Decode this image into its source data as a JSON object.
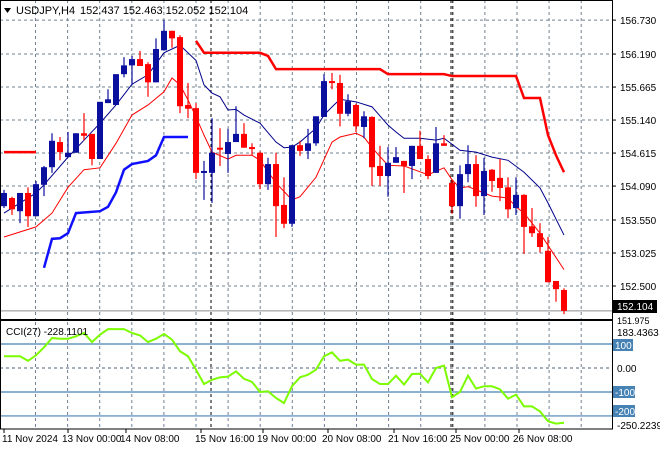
{
  "header": {
    "menu_icon": "triangle-down-icon",
    "symbol_timeframe": "USDJPY,H4",
    "ohlc_text": "152.437 152.463 152.052 152.104"
  },
  "price_axis": {
    "labels": [
      "156.730",
      "156.190",
      "155.665",
      "155.140",
      "154.615",
      "154.090",
      "153.550",
      "153.025",
      "152.500"
    ],
    "current_price": "152.104",
    "bottom_label": "151.975"
  },
  "indicator": {
    "title": "CCI(27) -228.1101",
    "max_label": "183.4363",
    "min_label": "-250.2239",
    "level_labels": [
      "100",
      "0.00",
      "-100",
      "-200"
    ]
  },
  "time_axis": {
    "labels": [
      "11 Nov 2024",
      "13 Nov 00:00",
      "14 Nov 08:00",
      "15 Nov 16:00",
      "19 Nov 00:00",
      "20 Nov 08:00",
      "21 Nov 16:00",
      "25 Nov 00:00",
      "26 Nov 08:00"
    ]
  },
  "colors": {
    "bull": "#0a0f9e",
    "bear": "#ff0000",
    "ma_blue": "#00008b",
    "ma_red": "#ff0000",
    "band_upper": "#ff0000",
    "band_lower": "#1010ff",
    "cci": "#7cfc00",
    "level": "#4682b4",
    "grid": "#708090"
  },
  "chart_data": [
    {
      "type": "candlestick",
      "symbol": "USDJPY",
      "timeframe": "H4",
      "ylim": [
        151.975,
        157.05
      ],
      "grid": true,
      "ohlc": [
        [
          153.77,
          154.03,
          153.74,
          153.98
        ],
        [
          153.9,
          153.92,
          153.63,
          153.72
        ],
        [
          153.69,
          153.98,
          153.5,
          153.98
        ],
        [
          153.98,
          154.07,
          153.44,
          153.61
        ],
        [
          153.61,
          154.17,
          153.61,
          154.12
        ],
        [
          154.11,
          154.41,
          153.93,
          154.39
        ],
        [
          154.39,
          154.93,
          154.3,
          154.81
        ],
        [
          154.79,
          154.87,
          154.5,
          154.63
        ],
        [
          154.55,
          154.95,
          154.54,
          154.62
        ],
        [
          154.62,
          154.93,
          154.62,
          154.93
        ],
        [
          154.93,
          155.25,
          154.82,
          154.89
        ],
        [
          154.92,
          154.92,
          154.42,
          154.52
        ],
        [
          154.52,
          155.43,
          154.52,
          155.43
        ],
        [
          155.41,
          155.63,
          155.41,
          155.47
        ],
        [
          155.38,
          155.87,
          155.38,
          155.87
        ],
        [
          155.87,
          156.14,
          155.82,
          156.01
        ],
        [
          156.01,
          156.16,
          155.7,
          156.11
        ],
        [
          156.11,
          156.24,
          156.0,
          156.0
        ],
        [
          156.03,
          156.06,
          155.51,
          155.74
        ],
        [
          155.74,
          156.44,
          155.74,
          156.27
        ],
        [
          156.25,
          156.73,
          156.25,
          156.56
        ],
        [
          156.56,
          156.56,
          156.29,
          156.44
        ],
        [
          156.46,
          156.49,
          155.25,
          155.36
        ],
        [
          155.38,
          155.73,
          155.17,
          155.32
        ],
        [
          155.33,
          155.41,
          154.2,
          154.3
        ],
        [
          154.3,
          154.49,
          153.87,
          154.33
        ],
        [
          154.3,
          155.17,
          153.82,
          154.62
        ],
        [
          154.7,
          155.01,
          154.41,
          154.68
        ],
        [
          154.6,
          155.0,
          154.3,
          154.79
        ],
        [
          154.79,
          155.36,
          154.79,
          154.92
        ],
        [
          154.92,
          155.09,
          154.7,
          154.7
        ],
        [
          154.71,
          154.77,
          154.58,
          154.68
        ],
        [
          154.62,
          154.64,
          154.04,
          154.12
        ],
        [
          154.12,
          154.54,
          154.03,
          154.44
        ],
        [
          154.44,
          154.62,
          153.28,
          153.77
        ],
        [
          153.79,
          154.23,
          153.42,
          153.49
        ],
        [
          153.49,
          154.74,
          153.44,
          154.74
        ],
        [
          154.74,
          154.81,
          154.57,
          154.65
        ],
        [
          154.65,
          155.0,
          154.52,
          154.77
        ],
        [
          154.77,
          155.2,
          154.73,
          155.2
        ],
        [
          155.19,
          155.87,
          155.19,
          155.76
        ],
        [
          155.76,
          155.89,
          155.63,
          155.73
        ],
        [
          155.73,
          155.86,
          155.04,
          155.24
        ],
        [
          155.24,
          155.55,
          155.2,
          155.44
        ],
        [
          155.38,
          155.4,
          154.95,
          155.04
        ],
        [
          155.03,
          155.28,
          154.85,
          155.2
        ],
        [
          155.19,
          155.2,
          154.09,
          154.39
        ],
        [
          154.41,
          154.73,
          154.09,
          154.25
        ],
        [
          154.25,
          154.71,
          153.92,
          154.46
        ],
        [
          154.46,
          154.71,
          154.46,
          154.55
        ],
        [
          154.49,
          154.49,
          153.98,
          154.41
        ],
        [
          154.41,
          154.73,
          154.2,
          154.73
        ],
        [
          154.73,
          154.97,
          154.52,
          154.52
        ],
        [
          154.52,
          154.58,
          154.2,
          154.25
        ],
        [
          154.3,
          155.03,
          154.3,
          154.77
        ],
        [
          154.77,
          154.9,
          154.73,
          154.73
        ],
        [
          154.14,
          154.2,
          153.65,
          153.77
        ],
        [
          153.77,
          154.42,
          153.57,
          154.28
        ],
        [
          154.28,
          154.74,
          154.15,
          154.44
        ],
        [
          154.44,
          154.58,
          153.76,
          153.93
        ],
        [
          153.93,
          154.54,
          153.63,
          154.33
        ],
        [
          154.35,
          154.36,
          154.0,
          154.17
        ],
        [
          154.22,
          154.52,
          153.85,
          154.06
        ],
        [
          154.07,
          154.23,
          153.58,
          153.72
        ],
        [
          153.74,
          154.23,
          153.63,
          153.95
        ],
        [
          153.95,
          153.96,
          153.01,
          153.44
        ],
        [
          153.45,
          153.74,
          153.28,
          153.34
        ],
        [
          153.34,
          153.5,
          153.03,
          153.12
        ],
        [
          153.06,
          153.28,
          152.56,
          152.56
        ],
        [
          152.58,
          152.58,
          152.25,
          152.45
        ],
        [
          152.437,
          152.463,
          152.052,
          152.104
        ]
      ],
      "ma_blue": [
        [
          0,
          153.66
        ],
        [
          4,
          153.98
        ],
        [
          5,
          154.11
        ],
        [
          8,
          154.55
        ],
        [
          10,
          154.82
        ],
        [
          12,
          155.09
        ],
        [
          14,
          155.38
        ],
        [
          16,
          155.71
        ],
        [
          18,
          155.86
        ],
        [
          20,
          156.21
        ],
        [
          22,
          156.33
        ],
        [
          24,
          156.09
        ],
        [
          25,
          155.7
        ],
        [
          26,
          155.57
        ],
        [
          27,
          155.51
        ],
        [
          28,
          155.3
        ],
        [
          29,
          155.31
        ],
        [
          30,
          155.22
        ],
        [
          32,
          155.09
        ],
        [
          34,
          154.79
        ],
        [
          35,
          154.7
        ],
        [
          36,
          154.71
        ],
        [
          37,
          154.79
        ],
        [
          39,
          155.01
        ],
        [
          40,
          155.22
        ],
        [
          41,
          155.35
        ],
        [
          42,
          155.47
        ],
        [
          44,
          155.43
        ],
        [
          46,
          155.35
        ],
        [
          48,
          155.06
        ],
        [
          49,
          154.95
        ],
        [
          50,
          154.85
        ],
        [
          52,
          154.85
        ],
        [
          54,
          154.82
        ],
        [
          55,
          154.85
        ],
        [
          57,
          154.66
        ],
        [
          59,
          154.63
        ],
        [
          61,
          154.55
        ],
        [
          63,
          154.5
        ],
        [
          65,
          154.31
        ],
        [
          67,
          154.06
        ],
        [
          68,
          153.82
        ],
        [
          70,
          153.31
        ]
      ],
      "ma_red": [
        [
          0,
          153.28
        ],
        [
          4,
          153.44
        ],
        [
          6,
          153.66
        ],
        [
          8,
          154.07
        ],
        [
          10,
          154.35
        ],
        [
          12,
          154.38
        ],
        [
          14,
          154.77
        ],
        [
          16,
          155.22
        ],
        [
          18,
          155.38
        ],
        [
          20,
          155.59
        ],
        [
          21,
          155.81
        ],
        [
          22,
          155.7
        ],
        [
          23,
          155.46
        ],
        [
          24,
          155.19
        ],
        [
          25,
          154.9
        ],
        [
          26,
          154.63
        ],
        [
          28,
          154.52
        ],
        [
          29,
          154.58
        ],
        [
          31,
          154.58
        ],
        [
          32,
          154.5
        ],
        [
          34,
          154.14
        ],
        [
          36,
          153.87
        ],
        [
          37,
          153.92
        ],
        [
          39,
          154.23
        ],
        [
          41,
          154.79
        ],
        [
          42,
          154.87
        ],
        [
          44,
          154.93
        ],
        [
          45,
          154.87
        ],
        [
          46,
          154.7
        ],
        [
          48,
          154.42
        ],
        [
          50,
          154.41
        ],
        [
          53,
          154.27
        ],
        [
          55,
          154.38
        ],
        [
          56,
          154.19
        ],
        [
          57,
          154.06
        ],
        [
          58,
          154.08
        ],
        [
          61,
          153.93
        ],
        [
          63,
          153.9
        ],
        [
          64,
          153.76
        ],
        [
          65,
          153.66
        ],
        [
          67,
          153.34
        ],
        [
          70,
          152.76
        ]
      ],
      "band_upper": [
        [
          0,
          154.63
        ],
        [
          4,
          154.63
        ],
        null,
        [
          24,
          156.4
        ],
        [
          25,
          156.21
        ],
        [
          32,
          156.21
        ],
        [
          33,
          156.16
        ],
        [
          34,
          155.95
        ],
        [
          47,
          155.95
        ],
        [
          48,
          155.87
        ],
        [
          55,
          155.87
        ],
        [
          56,
          155.84
        ],
        [
          64,
          155.84
        ],
        [
          65,
          155.49
        ],
        [
          67,
          155.49
        ],
        [
          68,
          154.9
        ],
        [
          69,
          154.58
        ],
        [
          70,
          154.31
        ]
      ],
      "band_lower": [
        [
          5,
          152.79
        ],
        [
          6,
          153.25
        ],
        [
          7,
          153.26
        ],
        [
          8,
          153.34
        ],
        [
          9,
          153.66
        ],
        [
          12,
          153.69
        ],
        [
          13,
          153.76
        ],
        [
          14,
          153.99
        ],
        [
          15,
          154.35
        ],
        [
          16,
          154.44
        ],
        [
          18,
          154.49
        ],
        [
          19,
          154.58
        ],
        [
          20,
          154.87
        ],
        [
          23,
          154.87
        ]
      ]
    },
    {
      "type": "line",
      "title": "CCI(27) -228.1101",
      "ylim": [
        -250.2239,
        183.4363
      ],
      "levels": [
        100,
        0,
        -100,
        -200
      ],
      "values": [
        49,
        49,
        49,
        30,
        53,
        86,
        125,
        122,
        122,
        132,
        146,
        108,
        139,
        162,
        162,
        162,
        146,
        136,
        108,
        122,
        142,
        118,
        70,
        49,
        -7,
        -67,
        -49,
        -39,
        -36,
        -14,
        -45,
        -58,
        -100,
        -97,
        -125,
        -146,
        -76,
        -39,
        -28,
        -7,
        49,
        65,
        30,
        35,
        14,
        14,
        -46,
        -67,
        -67,
        -32,
        -69,
        -25,
        -24,
        -60,
        0,
        10,
        -122,
        -100,
        -32,
        -86,
        -76,
        -76,
        -89,
        -128,
        -111,
        -160,
        -160,
        -181,
        -222,
        -232,
        -228.1101
      ]
    }
  ]
}
